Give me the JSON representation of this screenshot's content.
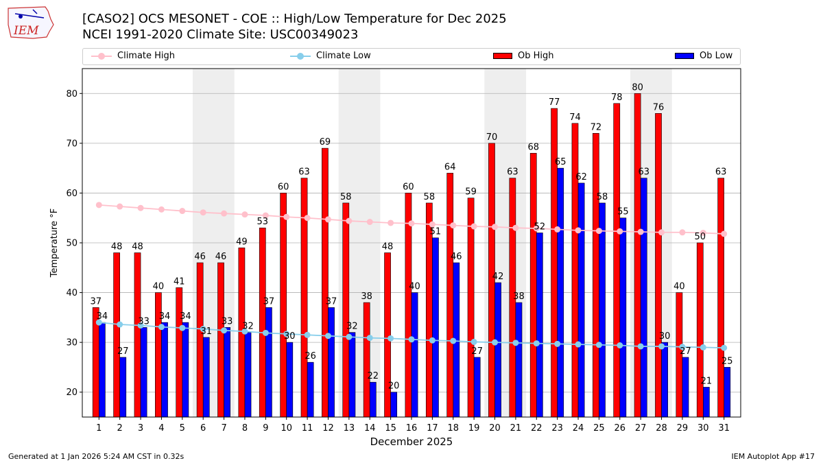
{
  "header": {
    "title_line1": "[CASO2] OCS MESONET - COE :: High/Low Temperature for Dec 2025",
    "title_line2": "NCEI 1991-2020 Climate Site: USC00349023",
    "logo_text": "IEM"
  },
  "footer": {
    "generated": "Generated at 1 Jan 2026 5:24 AM CST in 0.32s",
    "app": "IEM Autoplot App #17"
  },
  "colors": {
    "ob_high": "#ff0000",
    "ob_low": "#0000ff",
    "climate_high": "#ffc0cb",
    "climate_low": "#87ceeb",
    "weekend_shade": "#eeeeee",
    "grid": "#b0b0b0"
  },
  "chart_data": {
    "type": "bar",
    "xlabel": "December 2025",
    "ylabel": "Temperature °F",
    "ylim": [
      15,
      85
    ],
    "yticks": [
      20,
      30,
      40,
      50,
      60,
      70,
      80
    ],
    "grid": true,
    "legend_position": "top",
    "categories": [
      "1",
      "2",
      "3",
      "4",
      "5",
      "6",
      "7",
      "8",
      "9",
      "10",
      "11",
      "12",
      "13",
      "14",
      "15",
      "16",
      "17",
      "18",
      "19",
      "20",
      "21",
      "22",
      "23",
      "24",
      "25",
      "26",
      "27",
      "28",
      "29",
      "30",
      "31"
    ],
    "shaded_days": [
      [
        6,
        7
      ],
      [
        13,
        14
      ],
      [
        20,
        21
      ],
      [
        27,
        28
      ]
    ],
    "series": [
      {
        "name": "Climate High",
        "kind": "line",
        "values": [
          57.6,
          57.3,
          57.0,
          56.7,
          56.4,
          56.1,
          55.9,
          55.7,
          55.5,
          55.2,
          55.0,
          54.7,
          54.4,
          54.2,
          54.0,
          53.9,
          53.7,
          53.5,
          53.3,
          53.2,
          53.0,
          52.9,
          52.7,
          52.5,
          52.4,
          52.3,
          52.2,
          52.1,
          52.1,
          52.0,
          51.8
        ]
      },
      {
        "name": "Climate Low",
        "kind": "line",
        "values": [
          34.0,
          33.6,
          33.4,
          33.1,
          32.9,
          32.7,
          32.4,
          32.2,
          31.9,
          31.7,
          31.5,
          31.3,
          31.1,
          30.9,
          30.8,
          30.6,
          30.4,
          30.3,
          30.1,
          30.0,
          29.9,
          29.8,
          29.7,
          29.6,
          29.5,
          29.4,
          29.2,
          29.2,
          29.1,
          29.0,
          28.9
        ]
      },
      {
        "name": "Ob High",
        "kind": "bar",
        "values": [
          37,
          48,
          48,
          40,
          41,
          46,
          46,
          49,
          53,
          60,
          63,
          69,
          58,
          38,
          48,
          60,
          58,
          64,
          59,
          70,
          63,
          68,
          77,
          74,
          72,
          78,
          80,
          76,
          40,
          50,
          63
        ]
      },
      {
        "name": "Ob Low",
        "kind": "bar",
        "values": [
          34,
          27,
          33,
          34,
          34,
          31,
          33,
          32,
          37,
          30,
          26,
          37,
          32,
          22,
          20,
          40,
          51,
          46,
          27,
          42,
          38,
          52,
          65,
          62,
          58,
          55,
          63,
          30,
          27,
          21,
          25
        ]
      }
    ]
  }
}
